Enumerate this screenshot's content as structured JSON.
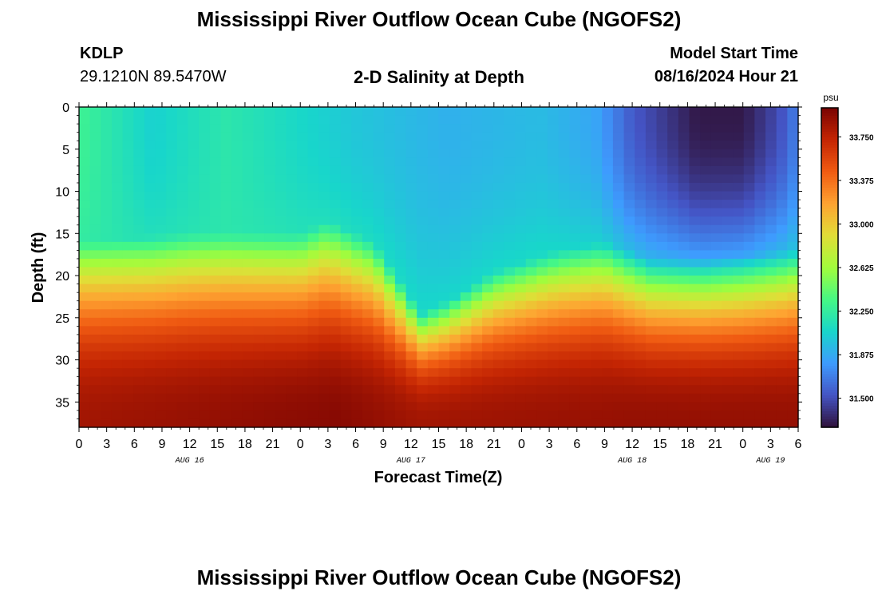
{
  "header": {
    "title": "Mississippi River Outflow Ocean Cube (NGOFS2)",
    "station_id": "KDLP",
    "station_coords": "29.1210N  89.5470W",
    "chart_title": "2-D Salinity at Depth",
    "model_start_label": "Model Start Time",
    "model_start_value": "08/16/2024 Hour 21"
  },
  "footer": {
    "title": "Mississippi River Outflow Ocean Cube (NGOFS2)"
  },
  "chart_data": {
    "type": "heatmap",
    "title": "2-D Salinity at Depth",
    "xlabel": "Forecast Time(Z)",
    "ylabel": "Depth (ft)",
    "x_hours_range": [
      0,
      78
    ],
    "x_tick_step_hours": 3,
    "x_tick_labels": [
      "0",
      "3",
      "6",
      "9",
      "12",
      "15",
      "18",
      "21",
      "0",
      "3",
      "6",
      "9",
      "12",
      "15",
      "18",
      "21",
      "0",
      "3",
      "6",
      "9",
      "12",
      "15",
      "18",
      "21",
      "0",
      "3",
      "6"
    ],
    "date_labels": [
      {
        "label": "AUG 16",
        "hour": 12
      },
      {
        "label": "AUG 17",
        "hour": 36
      },
      {
        "label": "AUG 18",
        "hour": 60
      },
      {
        "label": "AUG 19",
        "hour": 75
      }
    ],
    "ylim": [
      0,
      38
    ],
    "y_ticks": [
      0,
      5,
      10,
      15,
      20,
      25,
      30,
      35
    ],
    "colorbar": {
      "unit": "psu",
      "range": [
        31.25,
        34.0
      ],
      "ticks": [
        "31.500",
        "31.875",
        "32.250",
        "32.625",
        "33.000",
        "33.375",
        "33.750"
      ],
      "tick_values": [
        31.5,
        31.875,
        32.25,
        32.625,
        33.0,
        33.375,
        33.75
      ],
      "colors": [
        "#30123b",
        "#4454c4",
        "#3e9bfe",
        "#18d6cb",
        "#46f884",
        "#a2fc3c",
        "#e1dd37",
        "#fea331",
        "#f05b12",
        "#c42503",
        "#7a0403"
      ]
    },
    "halocline_depth_ft": [
      {
        "hour": 0,
        "depth": 20
      },
      {
        "hour": 12,
        "depth": 19
      },
      {
        "hour": 24,
        "depth": 19
      },
      {
        "hour": 27,
        "depth": 17.5
      },
      {
        "hour": 32,
        "depth": 20
      },
      {
        "hour": 35,
        "depth": 25
      },
      {
        "hour": 37,
        "depth": 28.5
      },
      {
        "hour": 40,
        "depth": 27
      },
      {
        "hour": 45,
        "depth": 23.5
      },
      {
        "hour": 52,
        "depth": 21
      },
      {
        "hour": 57,
        "depth": 20
      },
      {
        "hour": 62,
        "depth": 22
      },
      {
        "hour": 68,
        "depth": 22
      },
      {
        "hour": 78,
        "depth": 21
      }
    ],
    "surface_salinity_psu": [
      {
        "hour": 0,
        "value": 32.3
      },
      {
        "hour": 8,
        "value": 32.05
      },
      {
        "hour": 16,
        "value": 32.2
      },
      {
        "hour": 30,
        "value": 32.0
      },
      {
        "hour": 40,
        "value": 31.9
      },
      {
        "hour": 50,
        "value": 31.95
      },
      {
        "hour": 56,
        "value": 31.85
      },
      {
        "hour": 60,
        "value": 31.55
      },
      {
        "hour": 67,
        "value": 31.28
      },
      {
        "hour": 72,
        "value": 31.28
      },
      {
        "hour": 76,
        "value": 31.5
      },
      {
        "hour": 78,
        "value": 31.7
      }
    ],
    "bottom_salinity_psu": [
      {
        "hour": 0,
        "value": 33.85
      },
      {
        "hour": 28,
        "value": 33.95
      },
      {
        "hour": 37,
        "value": 33.85
      },
      {
        "hour": 60,
        "value": 33.9
      },
      {
        "hour": 78,
        "value": 33.9
      }
    ]
  }
}
